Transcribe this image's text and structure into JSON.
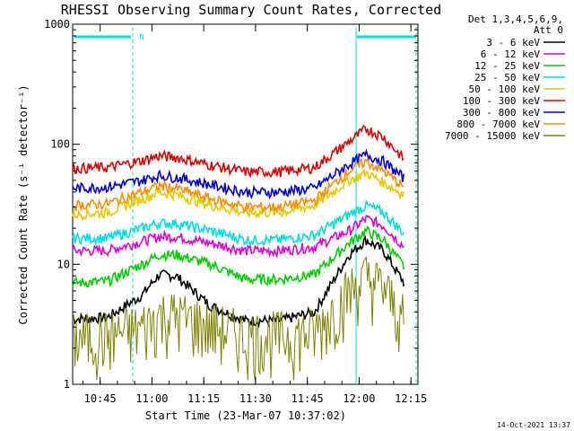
{
  "chart_data": {
    "type": "line",
    "title": "RHESSI Observing Summary Count Rates, Corrected",
    "xlabel": "Start Time (23-Mar-07 10:37:02)",
    "ylabel": "Corrected Count Rate (s⁻¹ detector⁻¹)",
    "yscale": "log",
    "ylim": [
      1,
      1000
    ],
    "xlim_minutes_after_start": [
      0,
      100
    ],
    "x_ticks": [
      "10:45",
      "11:00",
      "11:15",
      "11:30",
      "11:45",
      "12:00",
      "12:15"
    ],
    "x_tick_minutes_after_start": [
      7.97,
      22.97,
      37.97,
      52.97,
      67.97,
      82.97,
      97.97
    ],
    "y_ticks": [
      "1",
      "10",
      "100",
      "1000"
    ],
    "y_tick_values": [
      1,
      10,
      100,
      1000
    ],
    "legend_header": [
      "Det 1,3,4,5,6,9,",
      "Att 0"
    ],
    "legend_position": "right",
    "footer": "14-Oct-2021 13:37",
    "night_marker_label": "N",
    "time_points_minutes": [
      0,
      10,
      20,
      25,
      30,
      40,
      50,
      60,
      70,
      80,
      85,
      90,
      96
    ],
    "series": [
      {
        "name": "3 - 6 keV",
        "color": "#000000",
        "values": [
          3.5,
          3.6,
          5.5,
          8.2,
          8.0,
          4.5,
          3.4,
          3.4,
          4.0,
          12,
          16,
          13,
          7
        ]
      },
      {
        "name": "6 - 12 keV",
        "color": "#e000e0",
        "values": [
          13,
          13,
          15.5,
          17,
          17,
          15,
          13,
          13,
          14,
          19,
          24,
          21,
          14
        ]
      },
      {
        "name": "12 - 25 keV",
        "color": "#00d000",
        "values": [
          7,
          7.2,
          10,
          12,
          12,
          10,
          7.5,
          7.5,
          8.2,
          15,
          19,
          16,
          9.5
        ]
      },
      {
        "name": "25 - 50 keV",
        "color": "#00e0e0",
        "values": [
          16.5,
          16.5,
          20,
          22,
          22,
          19,
          16,
          16,
          17.5,
          26,
          31,
          27,
          18
        ]
      },
      {
        "name": "50 - 100 keV",
        "color": "#e8c800",
        "values": [
          26,
          27,
          35,
          40,
          38,
          31,
          27,
          27,
          31,
          50,
          58,
          48,
          38
        ]
      },
      {
        "name": "100 - 300 keV",
        "color": "#e00000",
        "values": [
          63,
          64,
          73,
          80,
          78,
          67,
          59,
          59,
          64,
          105,
          135,
          115,
          75
        ]
      },
      {
        "name": "300 - 800 keV",
        "color": "#0000e0",
        "values": [
          43,
          44,
          50,
          55,
          53,
          46,
          40,
          40,
          43,
          68,
          82,
          72,
          52
        ]
      },
      {
        "name": "800 - 7000 keV",
        "color": "#ff8c00",
        "values": [
          31,
          32,
          40,
          45,
          43,
          35,
          30,
          30,
          34,
          60,
          72,
          60,
          44
        ]
      },
      {
        "name": "7000 - 15000 keV",
        "color": "#808000",
        "values": [
          1.8,
          1.9,
          2.2,
          2.8,
          2.8,
          2.3,
          1.9,
          1.9,
          2.0,
          4.5,
          5.8,
          4.8,
          2.5
        ]
      }
    ],
    "annotation_colors": {
      "night_bar": "#00e0e0",
      "night_boundary": "#00e0e0"
    }
  }
}
